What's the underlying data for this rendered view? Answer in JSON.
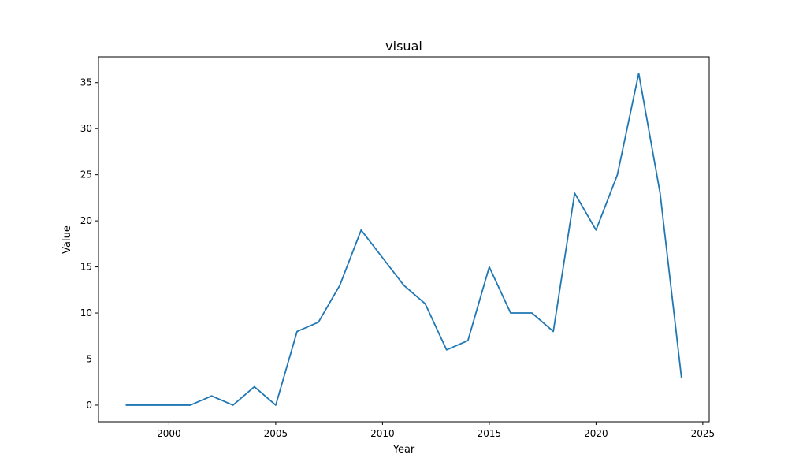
{
  "chart_data": {
    "type": "line",
    "title": "visual",
    "xlabel": "Year",
    "ylabel": "Value",
    "xlim": [
      1996.7,
      2025.3
    ],
    "ylim": [
      -1.8,
      37.8
    ],
    "xticks": [
      2000,
      2005,
      2010,
      2015,
      2020,
      2025
    ],
    "yticks": [
      0,
      5,
      10,
      15,
      20,
      25,
      30,
      35
    ],
    "grid": false,
    "line_color": "#1f77b4",
    "x": [
      1998,
      1999,
      2000,
      2001,
      2002,
      2003,
      2004,
      2005,
      2006,
      2007,
      2008,
      2009,
      2010,
      2011,
      2012,
      2013,
      2014,
      2015,
      2016,
      2017,
      2018,
      2019,
      2020,
      2021,
      2022,
      2023,
      2024
    ],
    "values": [
      0,
      0,
      0,
      0,
      1,
      0,
      2,
      0,
      8,
      9,
      13,
      19,
      16,
      13,
      11,
      6,
      7,
      15,
      10,
      10,
      8,
      23,
      19,
      25,
      36,
      23,
      3
    ]
  }
}
